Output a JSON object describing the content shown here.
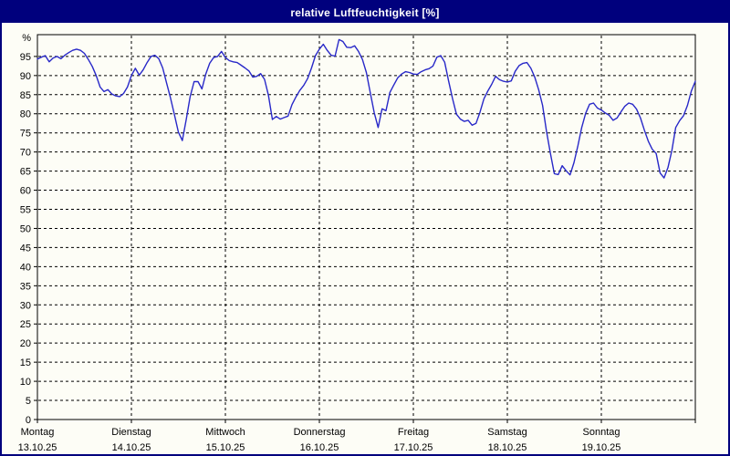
{
  "window": {
    "title": "relative Luftfeuchtigkeit [%]"
  },
  "colors": {
    "titlebar_bg": "#00007d",
    "titlebar_text": "#ffffff",
    "page_bg": "#fdfdf6",
    "axis": "#000000",
    "series_line": "#2828c8"
  },
  "chart_data": {
    "type": "line",
    "title": "relative Luftfeuchtigkeit [%]",
    "unit_label": "%",
    "ylabel": "relative Luftfeuchtigkeit [%]",
    "xlabel": "",
    "grid": "dashed",
    "legend_position": "none",
    "ylim": [
      0,
      100.7
    ],
    "y_tick_min": 0,
    "y_tick_max": 95,
    "y_tick_step": 5,
    "hours_per_day": 24,
    "x_days": [
      {
        "weekday": "Montag",
        "date": "13.10.25"
      },
      {
        "weekday": "Dienstag",
        "date": "14.10.25"
      },
      {
        "weekday": "Mittwoch",
        "date": "15.10.25"
      },
      {
        "weekday": "Donnerstag",
        "date": "16.10.25"
      },
      {
        "weekday": "Freitag",
        "date": "17.10.25"
      },
      {
        "weekday": "Samstag",
        "date": "18.10.25"
      },
      {
        "weekday": "Sonntag",
        "date": "19.10.25"
      }
    ],
    "series": [
      {
        "name": "relative Luftfeuchtigkeit",
        "color": "#2828c8",
        "sampling": "hourly",
        "values": [
          94.3,
          94.8,
          95.2,
          93.6,
          94.6,
          95.0,
          94.4,
          95.3,
          96.0,
          96.6,
          96.9,
          96.6,
          95.8,
          94.2,
          92.4,
          90.0,
          87.0,
          85.8,
          86.3,
          85.2,
          84.7,
          84.5,
          85.3,
          87.0,
          90.0,
          91.9,
          90.1,
          91.5,
          93.4,
          95.0,
          95.3,
          94.4,
          92.0,
          88.0,
          84.1,
          79.7,
          75.2,
          73.0,
          78.5,
          84.5,
          88.4,
          88.4,
          86.5,
          90.4,
          93.2,
          94.7,
          95.0,
          96.3,
          94.7,
          93.9,
          93.6,
          93.4,
          92.7,
          92.0,
          91.2,
          89.6,
          89.8,
          90.5,
          89.0,
          84.8,
          78.5,
          79.3,
          78.6,
          79.0,
          79.4,
          82.4,
          84.4,
          86.1,
          87.4,
          89.2,
          92.0,
          95.2,
          96.9,
          98.2,
          96.6,
          95.3,
          95.1,
          99.4,
          98.9,
          97.4,
          97.3,
          97.8,
          96.3,
          94.2,
          90.8,
          85.5,
          80.3,
          76.4,
          81.3,
          80.8,
          85.6,
          87.5,
          89.4,
          90.4,
          91.0,
          90.8,
          90.4,
          90.3,
          91.0,
          91.5,
          91.8,
          92.5,
          94.8,
          95.2,
          93.5,
          88.6,
          84.0,
          79.9,
          78.6,
          78.0,
          78.3,
          77.0,
          77.5,
          80.4,
          83.9,
          85.9,
          87.7,
          89.8,
          88.9,
          88.5,
          88.3,
          88.6,
          91.1,
          92.6,
          93.2,
          93.4,
          91.9,
          89.6,
          86.3,
          82.2,
          75.4,
          69.6,
          64.3,
          64.1,
          66.4,
          65.1,
          64.0,
          67.2,
          71.6,
          76.4,
          80.1,
          82.5,
          82.8,
          81.5,
          81.0,
          80.2,
          79.6,
          78.3,
          78.9,
          80.5,
          82.0,
          82.8,
          82.5,
          81.2,
          78.9,
          75.7,
          72.8,
          70.7,
          69.6,
          64.5,
          63.2,
          65.9,
          70.4,
          76.4,
          78.2,
          79.5,
          82.2,
          86.0,
          88.5
        ]
      }
    ]
  }
}
